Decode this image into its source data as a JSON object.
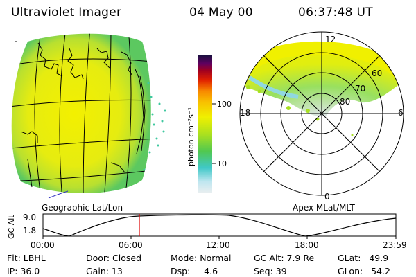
{
  "header": {
    "instrument": "Ultraviolet Imager",
    "date": "04 May 00",
    "time": "06:37:48 UT"
  },
  "left_panel": {
    "caption": "Geographic Lat/Lon"
  },
  "right_panel": {
    "caption": "Apex MLat/MLT",
    "mlt_labels": {
      "top": "12",
      "left": "18",
      "right": "6",
      "bottom": "0"
    },
    "mlat_labels": [
      "60",
      "70",
      "80"
    ]
  },
  "colorbar": {
    "unit_label": "photon cm⁻²s⁻¹",
    "ticks": [
      "100",
      "10"
    ]
  },
  "orbit_plot": {
    "ylabel": "GC Alt",
    "yticks": [
      "9.0",
      "1.8"
    ],
    "xticks": [
      "00:00",
      "06:00",
      "12:00",
      "18:00",
      "23:59"
    ],
    "current_time_marker": "06:37:48",
    "marker_color": "#dd0000"
  },
  "info_row1": {
    "flt": "Flt: LBHL",
    "door": "Door: Closed",
    "mode": "Mode: Normal",
    "gc_alt": "GC Alt: 7.9 Re",
    "glat": "GLat:   49.9"
  },
  "info_row2": {
    "ip": "IP: 36.0",
    "gain": "Gain: 13",
    "dsp": "Dsp:     4.6",
    "seq": "Seq: 39",
    "glon": "GLon:   54.2"
  }
}
